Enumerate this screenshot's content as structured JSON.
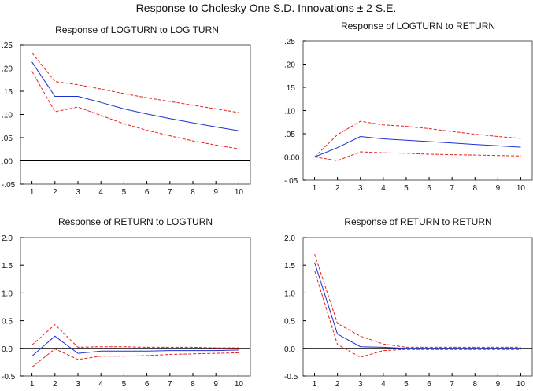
{
  "title": "Response to Cholesky One S.D. Innovations ± 2 S.E.",
  "colors": {
    "response": "#1f2fd6",
    "band": "#e8201a",
    "axis": "#000000",
    "frame": "#555555"
  },
  "chart_data": [
    {
      "type": "line",
      "title": "Response of LOGTURN to LOG TURN",
      "x": [
        1,
        2,
        3,
        4,
        5,
        6,
        7,
        8,
        9,
        10
      ],
      "ylim": [
        -0.05,
        0.25
      ],
      "yticks": [
        -0.05,
        0.0,
        0.05,
        0.1,
        0.15,
        0.2,
        0.25
      ],
      "ytick_labels": [
        "-.05",
        ".00",
        ".05",
        ".10",
        ".15",
        ".20",
        ".25"
      ],
      "series": [
        {
          "name": "response",
          "values": [
            0.213,
            0.139,
            0.139,
            0.126,
            0.112,
            0.101,
            0.091,
            0.082,
            0.073,
            0.065
          ]
        },
        {
          "name": "upper",
          "values": [
            0.233,
            0.171,
            0.164,
            0.155,
            0.145,
            0.136,
            0.128,
            0.12,
            0.112,
            0.104
          ]
        },
        {
          "name": "lower",
          "values": [
            0.193,
            0.106,
            0.116,
            0.098,
            0.08,
            0.066,
            0.054,
            0.043,
            0.034,
            0.026
          ]
        }
      ]
    },
    {
      "type": "line",
      "title": "Response of LOGTURN to RETURN",
      "x": [
        1,
        2,
        3,
        4,
        5,
        6,
        7,
        8,
        9,
        10
      ],
      "ylim": [
        -0.05,
        0.25
      ],
      "yticks": [
        -0.05,
        0.0,
        0.05,
        0.1,
        0.15,
        0.2,
        0.25
      ],
      "ytick_labels": [
        "-.05",
        "0.00",
        ".05",
        ".10",
        ".15",
        ".20",
        ".25"
      ],
      "series": [
        {
          "name": "response",
          "values": [
            0.0,
            0.02,
            0.044,
            0.039,
            0.036,
            0.033,
            0.03,
            0.027,
            0.024,
            0.021
          ]
        },
        {
          "name": "upper",
          "values": [
            0.0,
            0.048,
            0.077,
            0.069,
            0.066,
            0.061,
            0.055,
            0.049,
            0.044,
            0.04
          ]
        },
        {
          "name": "lower",
          "values": [
            0.0,
            -0.008,
            0.011,
            0.009,
            0.008,
            0.006,
            0.005,
            0.004,
            0.003,
            0.002
          ]
        }
      ]
    },
    {
      "type": "line",
      "title": "Response of RETURN to LOGTURN",
      "x": [
        1,
        2,
        3,
        4,
        5,
        6,
        7,
        8,
        9,
        10
      ],
      "ylim": [
        -0.5,
        2.0
      ],
      "yticks": [
        -0.5,
        0.0,
        0.5,
        1.0,
        1.5,
        2.0
      ],
      "ytick_labels": [
        "-0.5",
        "0.0",
        "0.5",
        "1.0",
        "1.5",
        "2.0"
      ],
      "series": [
        {
          "name": "response",
          "values": [
            -0.14,
            0.22,
            -0.09,
            -0.05,
            -0.05,
            -0.05,
            -0.04,
            -0.04,
            -0.04,
            -0.03
          ]
        },
        {
          "name": "upper",
          "values": [
            0.06,
            0.43,
            0.02,
            0.03,
            0.03,
            0.02,
            0.02,
            0.02,
            0.01,
            0.01
          ]
        },
        {
          "name": "lower",
          "values": [
            -0.34,
            -0.01,
            -0.2,
            -0.14,
            -0.14,
            -0.13,
            -0.11,
            -0.1,
            -0.09,
            -0.08
          ]
        }
      ]
    },
    {
      "type": "line",
      "title": "Response of RETURN to RETURN",
      "x": [
        1,
        2,
        3,
        4,
        5,
        6,
        7,
        8,
        9,
        10
      ],
      "ylim": [
        -0.5,
        2.0
      ],
      "yticks": [
        -0.5,
        0.0,
        0.5,
        1.0,
        1.5,
        2.0
      ],
      "ytick_labels": [
        "-0.5",
        "0.0",
        "0.5",
        "1.0",
        "1.5",
        "2.0"
      ],
      "series": [
        {
          "name": "response",
          "values": [
            1.55,
            0.26,
            0.03,
            0.02,
            0.0,
            0.0,
            0.0,
            0.0,
            0.0,
            0.0
          ]
        },
        {
          "name": "upper",
          "values": [
            1.7,
            0.45,
            0.22,
            0.08,
            0.02,
            0.02,
            0.02,
            0.02,
            0.02,
            0.02
          ]
        },
        {
          "name": "lower",
          "values": [
            1.4,
            0.07,
            -0.16,
            -0.04,
            -0.02,
            -0.02,
            -0.02,
            -0.02,
            -0.02,
            -0.02
          ]
        }
      ]
    }
  ]
}
